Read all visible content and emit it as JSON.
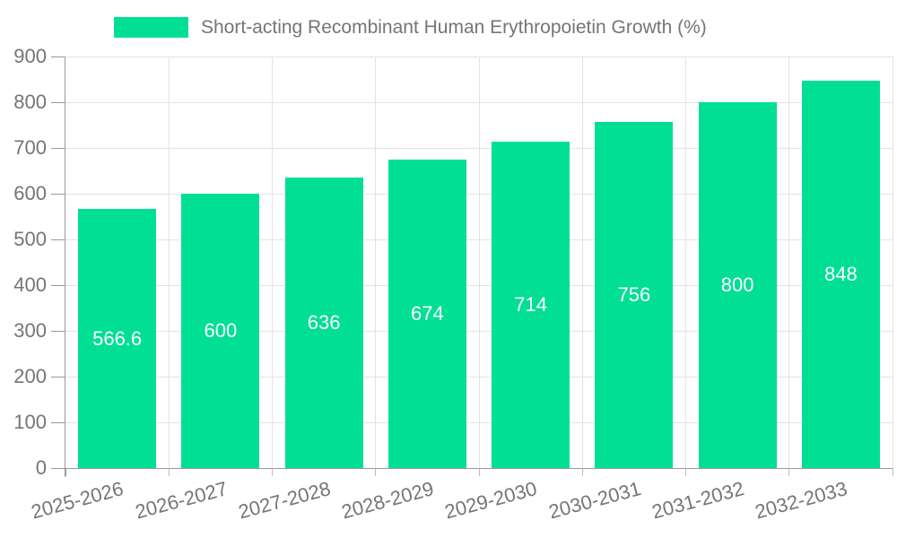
{
  "chart_data": {
    "type": "bar",
    "title": "Short-acting Recombinant Human Erythropoietin Growth (%)",
    "categories": [
      "2025-2026",
      "2026-2027",
      "2027-2028",
      "2028-2029",
      "2029-2030",
      "2030-2031",
      "2031-2032",
      "2032-2033"
    ],
    "values": [
      566.6,
      600,
      636,
      674,
      714,
      756,
      800,
      848
    ],
    "bar_labels": [
      "566.6",
      "600",
      "636",
      "674",
      "714",
      "756",
      "800",
      "848"
    ],
    "xlabel": "",
    "ylabel": "",
    "ylim": [
      0,
      900
    ],
    "ytick_step": 100,
    "yticks": [
      0,
      100,
      200,
      300,
      400,
      500,
      600,
      700,
      800,
      900
    ],
    "grid": true,
    "legend_position": "top",
    "colors": {
      "bar": "#00DF94",
      "bar_label": "#ffffff",
      "grid": "#e3e3e3",
      "axis": "#999999",
      "tick": "#bbbbbb",
      "tick_label": "#757575",
      "legend_text": "#757575",
      "background": "#ffffff"
    }
  }
}
